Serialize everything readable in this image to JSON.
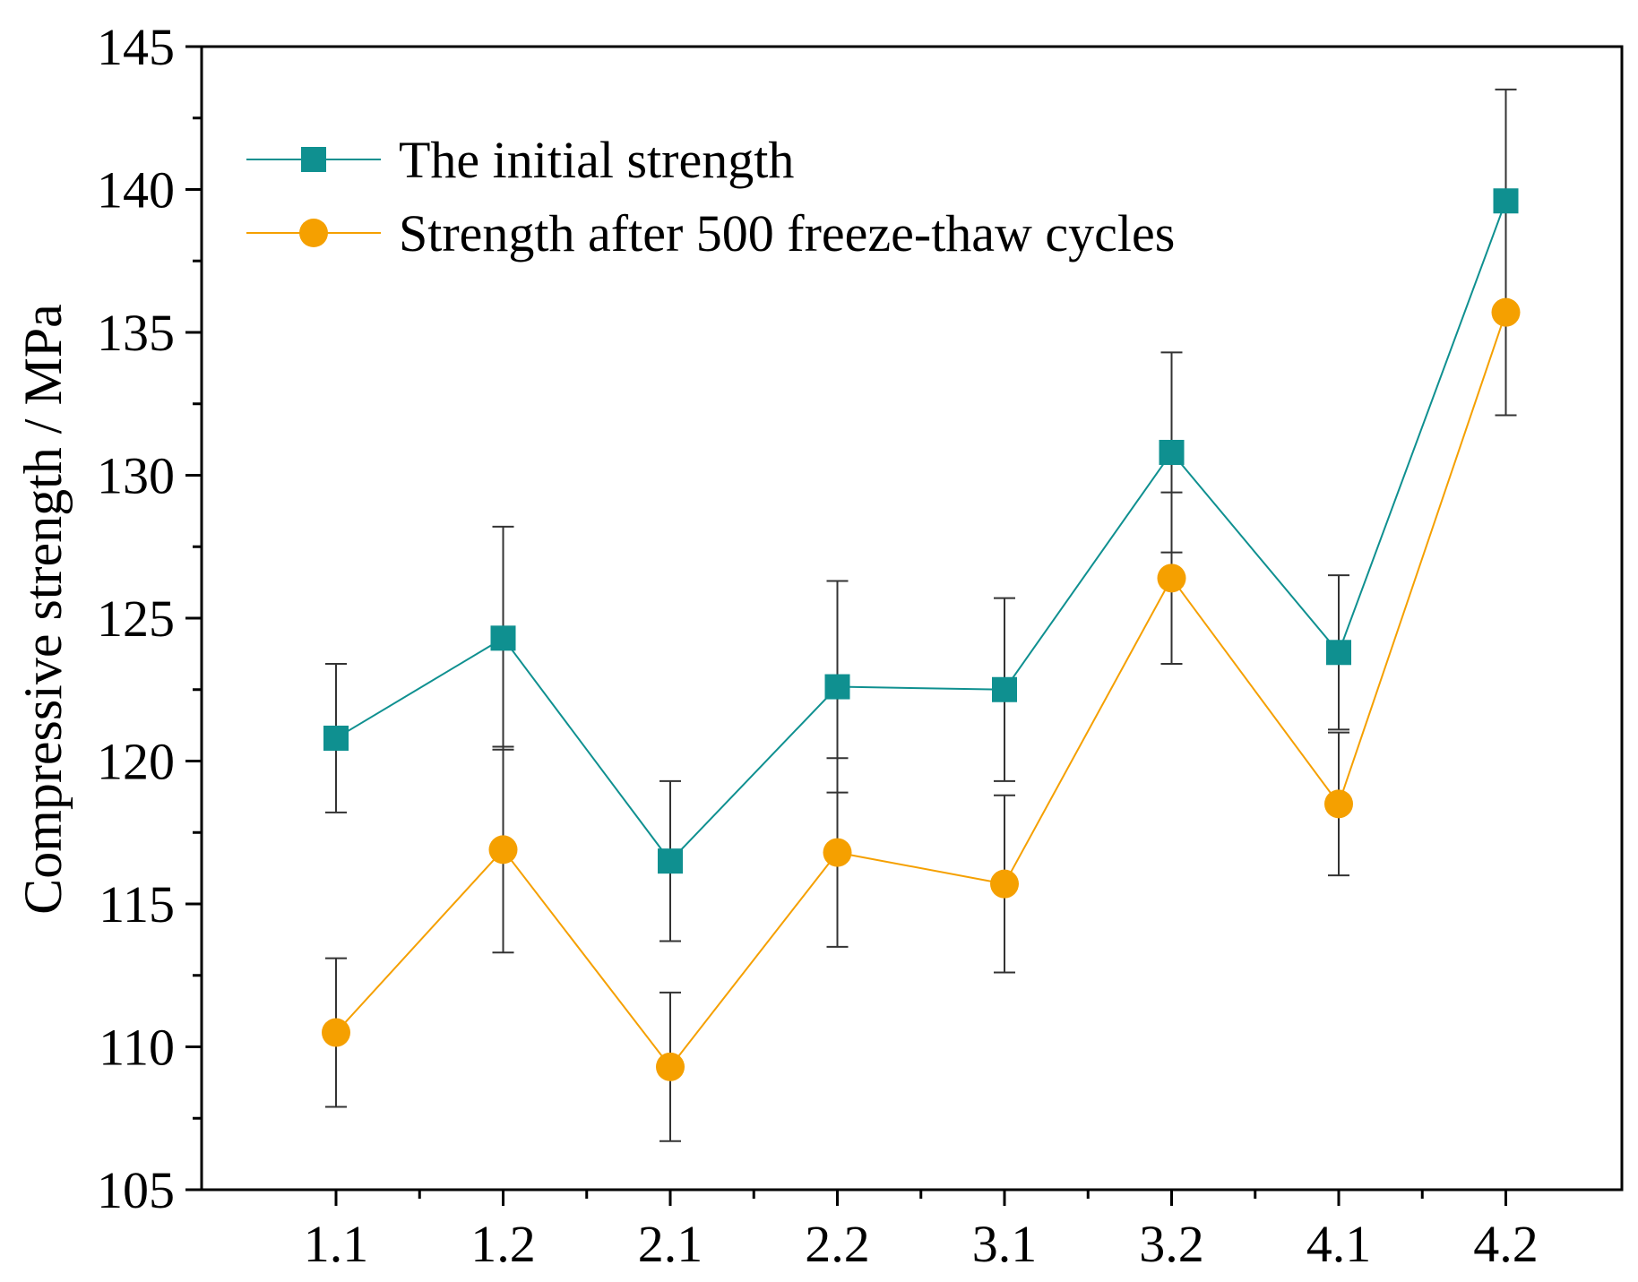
{
  "chart_data": {
    "type": "line",
    "title": "",
    "xlabel": "",
    "ylabel": "Compressive strength / MPa",
    "categories": [
      "1.1",
      "1.2",
      "2.1",
      "2.2",
      "3.1",
      "3.2",
      "4.1",
      "4.2"
    ],
    "ylim": [
      105,
      145
    ],
    "yticks": [
      "105",
      "110",
      "115",
      "120",
      "125",
      "130",
      "135",
      "140",
      "145"
    ],
    "grid": false,
    "legend_position": "top-left",
    "series": [
      {
        "name": "The initial strength",
        "color": "#0f9090",
        "marker": "square",
        "values": [
          120.8,
          124.3,
          116.5,
          122.6,
          122.5,
          130.8,
          123.8,
          139.6
        ],
        "errors": [
          2.6,
          3.9,
          2.8,
          3.7,
          3.2,
          3.5,
          2.7,
          3.9
        ]
      },
      {
        "name": "Strength after 500 freeze-thaw cycles",
        "color": "#f5a000",
        "marker": "circle",
        "values": [
          110.5,
          116.9,
          109.3,
          116.8,
          115.7,
          126.4,
          118.5,
          135.7
        ],
        "errors": [
          2.6,
          3.6,
          2.6,
          3.3,
          3.1,
          3.0,
          2.5,
          3.6
        ]
      }
    ]
  }
}
